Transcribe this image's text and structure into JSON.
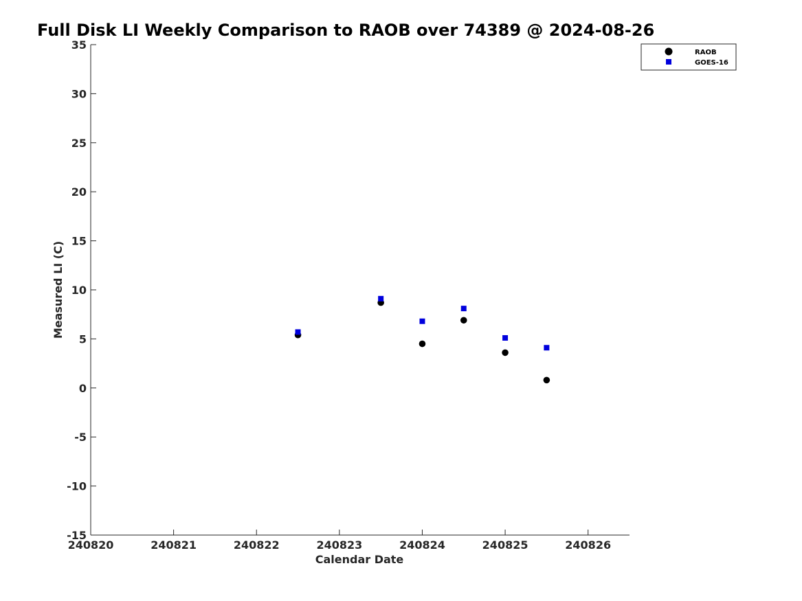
{
  "chart_data": {
    "type": "scatter",
    "title": "Full Disk LI Weekly Comparison to RAOB over 74389 @ 2024-08-26",
    "xlabel": "Calendar Date",
    "ylabel": "Measured LI (C)",
    "xlim": [
      240820,
      240826.5
    ],
    "ylim": [
      -15,
      35
    ],
    "xticks": [
      240820,
      240821,
      240822,
      240823,
      240824,
      240825,
      240826
    ],
    "xtick_labels": [
      "240820",
      "240821",
      "240822",
      "240823",
      "240824",
      "240825",
      "240826"
    ],
    "yticks": [
      -15,
      -10,
      -5,
      0,
      5,
      10,
      15,
      20,
      25,
      30,
      35
    ],
    "ytick_labels": [
      "-15",
      "-10",
      "-5",
      "0",
      "5",
      "10",
      "15",
      "20",
      "25",
      "30",
      "35"
    ],
    "grid": false,
    "legend_position": "top-right",
    "series": [
      {
        "name": "RAOB",
        "marker": "circle",
        "color": "#000000",
        "x": [
          240822.5,
          240823.5,
          240824.0,
          240824.5,
          240825.0,
          240825.5
        ],
        "y": [
          5.4,
          8.7,
          4.5,
          6.9,
          3.6,
          0.8
        ]
      },
      {
        "name": "GOES-16",
        "marker": "square",
        "color": "#0000dd",
        "x": [
          240822.5,
          240823.5,
          240824.0,
          240824.5,
          240825.0,
          240825.5
        ],
        "y": [
          5.7,
          9.1,
          6.8,
          8.1,
          5.1,
          4.1
        ]
      }
    ]
  }
}
